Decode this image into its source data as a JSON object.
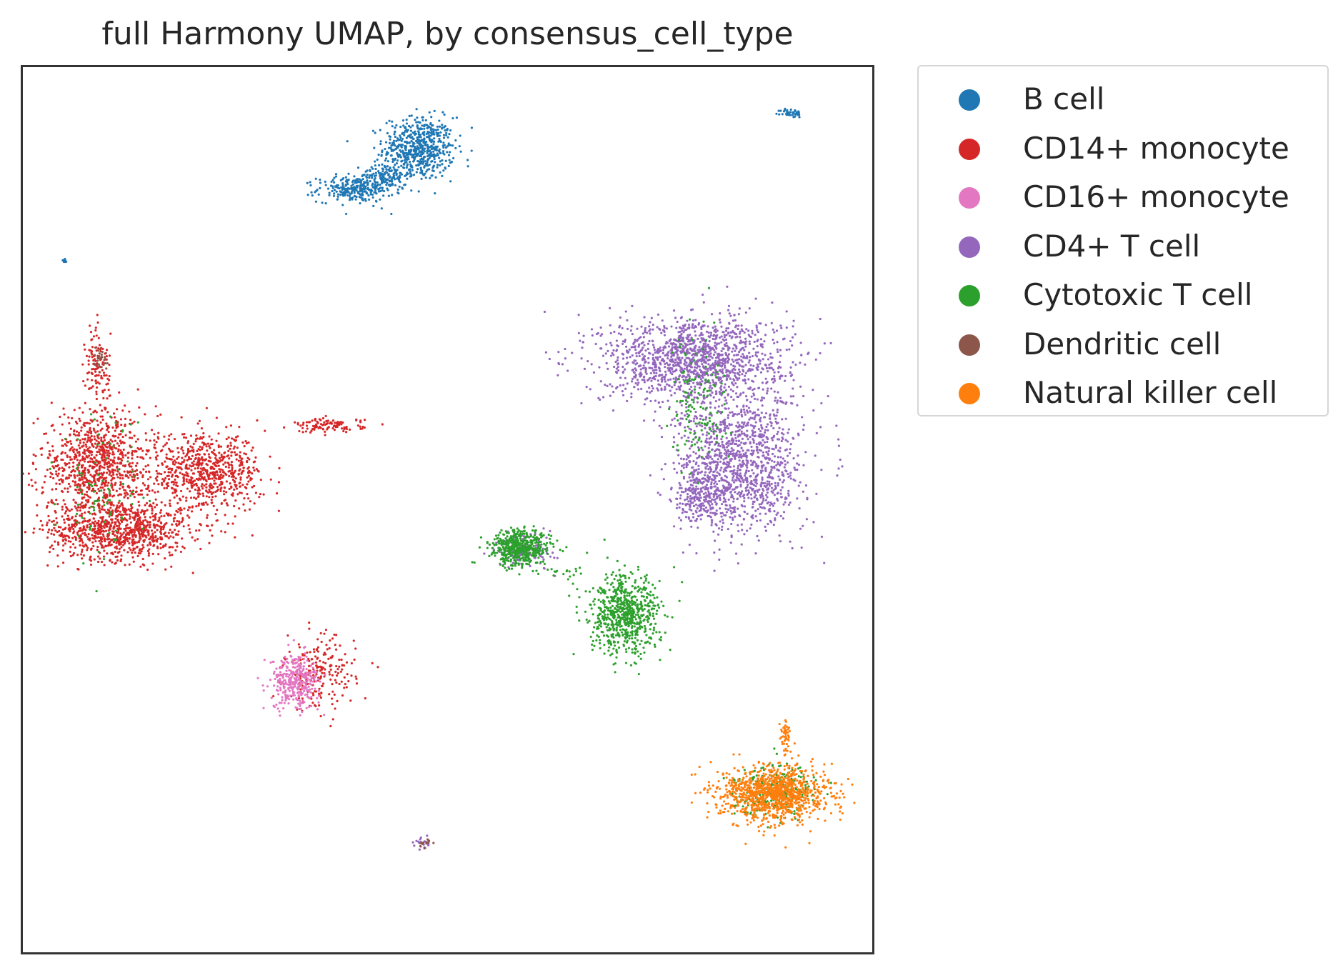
{
  "chart_data": {
    "type": "scatter",
    "title": "full Harmony UMAP, by consensus_cell_type",
    "xlabel": "",
    "ylabel": "",
    "axes_ticks": false,
    "grid": false,
    "legend_placement": "outside-right",
    "xlim": [
      0,
      100
    ],
    "ylim": [
      0,
      100
    ],
    "series": [
      {
        "name": "B cell",
        "color": "#1f77b4",
        "clusters": [
          {
            "cx": 46.6,
            "cy": 90.8,
            "sx": 2.6,
            "sy": 2.2,
            "n": 600
          },
          {
            "cx": 39.2,
            "cy": 86.2,
            "sx": 2.8,
            "sy": 0.9,
            "n": 260
          },
          {
            "cx": 42.6,
            "cy": 87.8,
            "sx": 1.7,
            "sy": 0.8,
            "n": 120
          },
          {
            "cx": 90.5,
            "cy": 94.8,
            "sx": 0.8,
            "sy": 0.3,
            "n": 40
          },
          {
            "cx": 4.9,
            "cy": 78.1,
            "sx": 0.2,
            "sy": 0.2,
            "n": 12
          }
        ]
      },
      {
        "name": "CD14+ monocyte",
        "color": "#d62728",
        "clusters": [
          {
            "cx": 11.4,
            "cy": 47.7,
            "sx": 5.2,
            "sy": 2.1,
            "n": 900
          },
          {
            "cx": 8.9,
            "cy": 55.2,
            "sx": 4.4,
            "sy": 3.6,
            "n": 900
          },
          {
            "cx": 21.6,
            "cy": 54.2,
            "sx": 4.1,
            "sy": 2.6,
            "n": 700
          },
          {
            "cx": 8.8,
            "cy": 65.8,
            "sx": 0.9,
            "sy": 3.2,
            "n": 120
          },
          {
            "cx": 36.0,
            "cy": 59.5,
            "sx": 2.6,
            "sy": 0.5,
            "n": 110
          },
          {
            "cx": 35.0,
            "cy": 31.5,
            "sx": 2.6,
            "sy": 2.6,
            "n": 200
          }
        ]
      },
      {
        "name": "CD16+ monocyte",
        "color": "#e377c2",
        "clusters": [
          {
            "cx": 32.1,
            "cy": 30.6,
            "sx": 1.8,
            "sy": 1.9,
            "n": 350
          }
        ]
      },
      {
        "name": "CD4+ T cell",
        "color": "#9467bd",
        "clusters": [
          {
            "cx": 79.0,
            "cy": 67.0,
            "sx": 6.8,
            "sy": 3.1,
            "n": 1400
          },
          {
            "cx": 84.6,
            "cy": 55.2,
            "sx": 4.5,
            "sy": 4.9,
            "n": 1200
          },
          {
            "cx": 80.0,
            "cy": 51.8,
            "sx": 2.0,
            "sy": 2.2,
            "n": 250
          },
          {
            "cx": 59.3,
            "cy": 45.5,
            "sx": 2.2,
            "sy": 1.2,
            "n": 120
          },
          {
            "cx": 47.2,
            "cy": 12.3,
            "sx": 0.6,
            "sy": 0.4,
            "n": 25
          }
        ]
      },
      {
        "name": "Cytotoxic T cell",
        "color": "#2ca02c",
        "clusters": [
          {
            "cx": 58.6,
            "cy": 45.7,
            "sx": 2.2,
            "sy": 1.3,
            "n": 500
          },
          {
            "cx": 70.9,
            "cy": 38.0,
            "sx": 2.6,
            "sy": 2.8,
            "n": 700
          },
          {
            "cx": 64.0,
            "cy": 42.4,
            "sx": 1.2,
            "sy": 0.6,
            "n": 15
          },
          {
            "cx": 88.5,
            "cy": 18.5,
            "sx": 3.0,
            "sy": 1.8,
            "n": 260
          },
          {
            "cx": 79.5,
            "cy": 62.0,
            "sx": 2.0,
            "sy": 5.0,
            "n": 140
          },
          {
            "cx": 9.5,
            "cy": 52.0,
            "sx": 3.5,
            "sy": 5.0,
            "n": 90
          }
        ]
      },
      {
        "name": "Dendritic cell",
        "color": "#8c564b",
        "clusters": [
          {
            "cx": 9.2,
            "cy": 67.0,
            "sx": 0.5,
            "sy": 1.0,
            "n": 30
          },
          {
            "cx": 47.2,
            "cy": 12.3,
            "sx": 0.5,
            "sy": 0.3,
            "n": 12
          }
        ]
      },
      {
        "name": "Natural killer cell",
        "color": "#ff7f0e",
        "clusters": [
          {
            "cx": 88.5,
            "cy": 17.9,
            "sx": 3.9,
            "sy": 1.9,
            "n": 1100
          },
          {
            "cx": 89.8,
            "cy": 24.2,
            "sx": 0.5,
            "sy": 1.4,
            "n": 50
          }
        ]
      }
    ]
  }
}
